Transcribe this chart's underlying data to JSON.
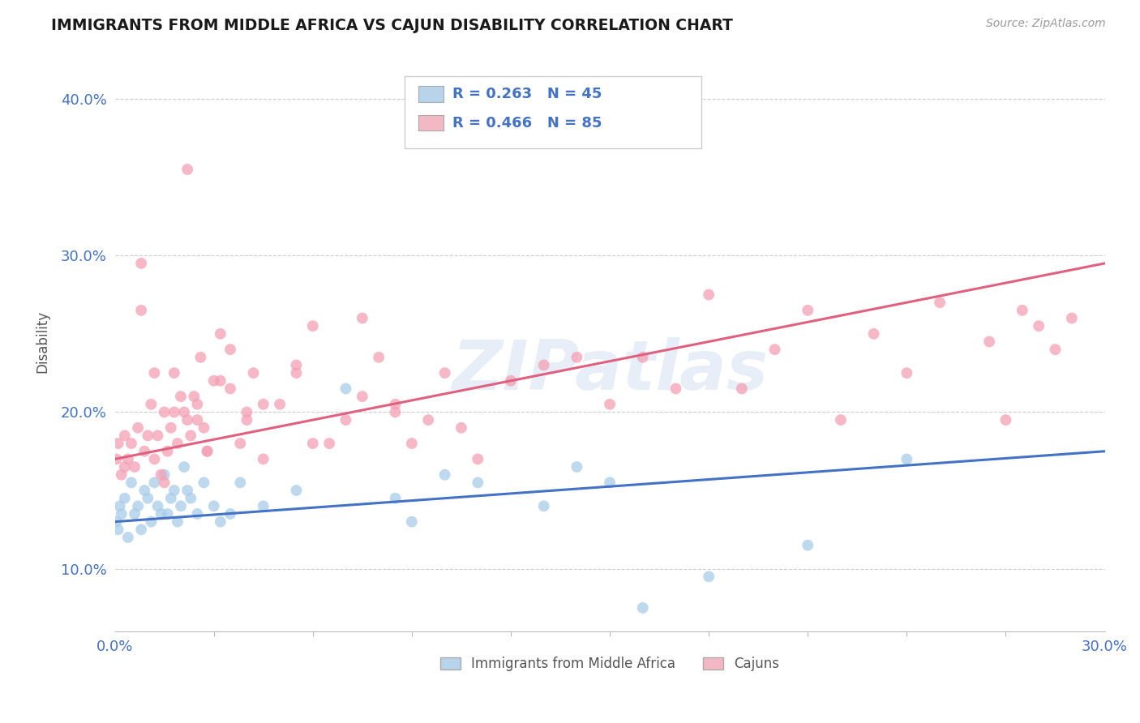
{
  "title": "IMMIGRANTS FROM MIDDLE AFRICA VS CAJUN DISABILITY CORRELATION CHART",
  "source_text": "Source: ZipAtlas.com",
  "ylabel": "Disability",
  "series": [
    {
      "name": "Immigrants from Middle Africa",
      "R": 0.263,
      "N": 45,
      "scatter_color": "#a8cce8",
      "line_color": "#4472c4",
      "legend_color": "#b8d4ea",
      "x": [
        0.05,
        0.1,
        0.15,
        0.2,
        0.3,
        0.4,
        0.5,
        0.6,
        0.7,
        0.8,
        0.9,
        1.0,
        1.1,
        1.2,
        1.3,
        1.4,
        1.5,
        1.6,
        1.7,
        1.8,
        1.9,
        2.0,
        2.1,
        2.2,
        2.3,
        2.5,
        2.7,
        3.0,
        3.2,
        3.5,
        3.8,
        4.5,
        5.5,
        7.0,
        8.5,
        9.0,
        10.0,
        11.0,
        13.0,
        14.0,
        15.0,
        16.0,
        18.0,
        21.0,
        24.0
      ],
      "y": [
        13.0,
        12.5,
        14.0,
        13.5,
        14.5,
        12.0,
        15.5,
        13.5,
        14.0,
        12.5,
        15.0,
        14.5,
        13.0,
        15.5,
        14.0,
        13.5,
        16.0,
        13.5,
        14.5,
        15.0,
        13.0,
        14.0,
        16.5,
        15.0,
        14.5,
        13.5,
        15.5,
        14.0,
        13.0,
        13.5,
        15.5,
        14.0,
        15.0,
        21.5,
        14.5,
        13.0,
        16.0,
        15.5,
        14.0,
        16.5,
        15.5,
        7.5,
        9.5,
        11.5,
        17.0
      ],
      "line_x0": 0.0,
      "line_y0": 13.0,
      "line_x1": 30.0,
      "line_y1": 17.5
    },
    {
      "name": "Cajuns",
      "R": 0.466,
      "N": 85,
      "scatter_color": "#f4a0b4",
      "line_color": "#e06080",
      "legend_color": "#f4b8c4",
      "x": [
        0.05,
        0.1,
        0.2,
        0.3,
        0.4,
        0.5,
        0.6,
        0.7,
        0.8,
        0.9,
        1.0,
        1.1,
        1.2,
        1.3,
        1.4,
        1.5,
        1.6,
        1.7,
        1.8,
        1.9,
        2.0,
        2.1,
        2.2,
        2.3,
        2.4,
        2.5,
        2.6,
        2.7,
        2.8,
        3.0,
        3.2,
        3.5,
        3.8,
        4.0,
        4.2,
        4.5,
        5.0,
        5.5,
        6.0,
        6.5,
        7.0,
        7.5,
        8.0,
        8.5,
        9.0,
        9.5,
        10.0,
        10.5,
        11.0,
        12.0,
        13.0,
        14.0,
        15.0,
        16.0,
        17.0,
        18.0,
        19.0,
        20.0,
        21.0,
        22.0,
        23.0,
        24.0,
        25.0,
        26.5,
        27.0,
        27.5,
        28.0,
        28.5,
        29.0,
        3.5,
        1.8,
        2.2,
        0.8,
        1.5,
        4.5,
        2.8,
        3.2,
        6.0,
        1.2,
        2.5,
        4.0,
        7.5,
        5.5,
        8.5,
        0.3
      ],
      "y": [
        17.0,
        18.0,
        16.0,
        18.5,
        17.0,
        18.0,
        16.5,
        19.0,
        29.5,
        17.5,
        18.5,
        20.5,
        17.0,
        18.5,
        16.0,
        20.0,
        17.5,
        19.0,
        22.5,
        18.0,
        21.0,
        20.0,
        19.5,
        18.5,
        21.0,
        20.5,
        23.5,
        19.0,
        17.5,
        22.0,
        25.0,
        24.0,
        18.0,
        19.5,
        22.5,
        17.0,
        20.5,
        23.0,
        25.5,
        18.0,
        19.5,
        21.0,
        23.5,
        20.5,
        18.0,
        19.5,
        22.5,
        19.0,
        17.0,
        22.0,
        23.0,
        23.5,
        20.5,
        23.5,
        21.5,
        27.5,
        21.5,
        24.0,
        26.5,
        19.5,
        25.0,
        22.5,
        27.0,
        24.5,
        19.5,
        26.5,
        25.5,
        24.0,
        26.0,
        21.5,
        20.0,
        35.5,
        26.5,
        15.5,
        20.5,
        17.5,
        22.0,
        18.0,
        22.5,
        19.5,
        20.0,
        26.0,
        22.5,
        20.0,
        16.5
      ],
      "line_x0": 0.0,
      "line_y0": 17.0,
      "line_x1": 30.0,
      "line_y1": 29.5
    }
  ],
  "xlim": [
    0.0,
    30.0
  ],
  "ylim": [
    6.0,
    43.0
  ],
  "yticks": [
    10.0,
    20.0,
    30.0,
    40.0
  ],
  "ytick_labels": [
    "10.0%",
    "20.0%",
    "30.0%",
    "40.0%"
  ],
  "xtick_labels": [
    "0.0%",
    "30.0%"
  ],
  "background_color": "#ffffff",
  "grid_color": "#cccccc",
  "title_color": "#1a1a1a",
  "legend_text_color": "#4472c4",
  "axis_label_color": "#4472c4",
  "ylabel_color": "#555555",
  "watermark_text": "ZIPatlas",
  "num_minor_xticks": 11
}
